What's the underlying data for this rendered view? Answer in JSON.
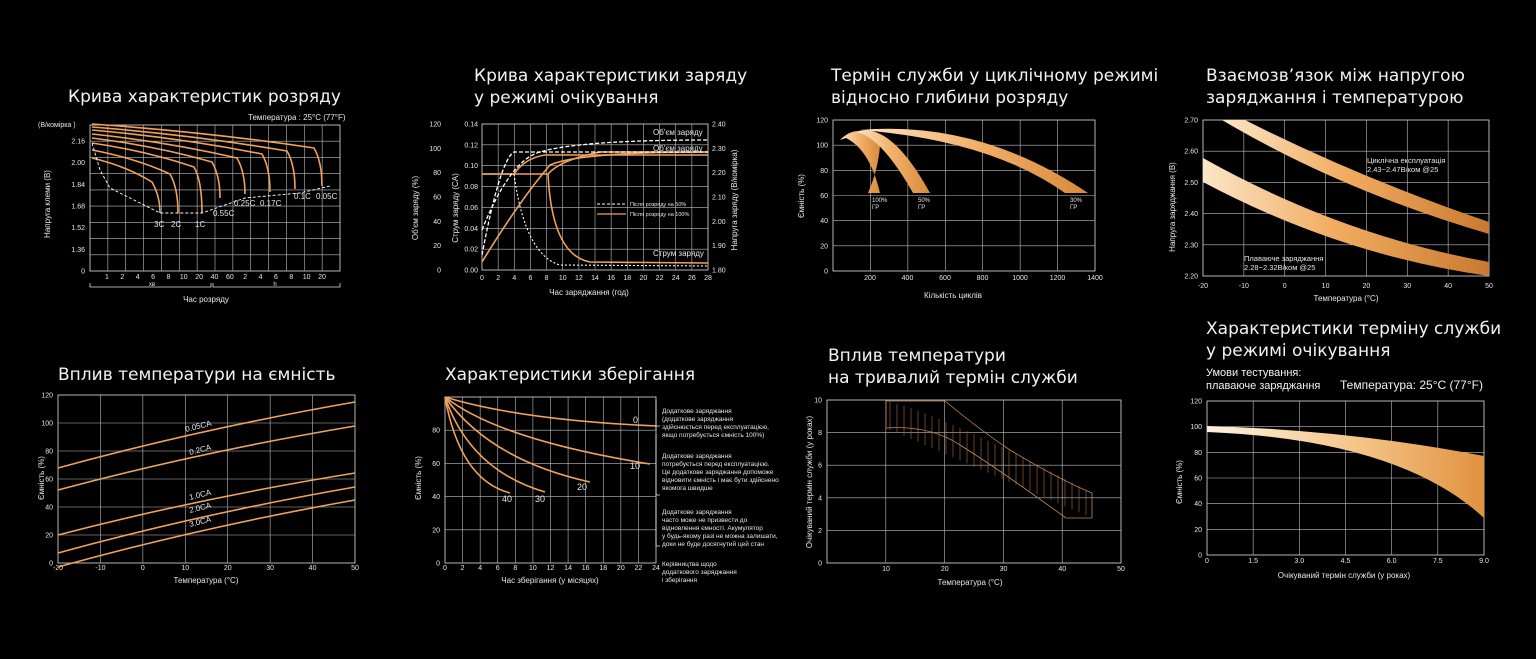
{
  "colors": {
    "background": "#000000",
    "curve": "#f0a25a",
    "band_light": "#f8d9ae",
    "band_dark": "#d98a3a",
    "text": "#e6e6e6"
  },
  "charts": {
    "discharge": {
      "title": "Крива характеристик розряду",
      "ylabel": "Напруга клеми (В)",
      "yunit": "(В/комірка )",
      "temp_label": "Температура : 25°C (77°F)",
      "xlabel": "Час розряду",
      "min_label": "хв",
      "hour_label": "h",
      "yticks": [
        "2.16",
        "2.00",
        "1.84",
        "1.68",
        "1.52",
        "1.36",
        "0"
      ],
      "xticks": [
        "1",
        "2",
        "4",
        "6",
        "8",
        "10",
        "20",
        "40",
        "60",
        "2",
        "4",
        "6",
        "8",
        "10",
        "20"
      ],
      "curve_labels": [
        "3C",
        "2C",
        "1C",
        "0.55C",
        "0.25C",
        "0.17C",
        "0.1C",
        "0.05C"
      ]
    },
    "standby_charge": {
      "title": "Крива характеристики заряду\nу режимі очікування",
      "xlabel": "Час заряджання (год)",
      "ylabel_left1": "Об'єм заряду (%)",
      "ylabel_left2": "Струм заряду (CA)",
      "ylabel_right": "Напруга заряду (В/комірка)",
      "yticks_left1": [
        "120",
        "100",
        "80",
        "60",
        "40",
        "20",
        "0"
      ],
      "yticks_left2": [
        "0.14",
        "0.12",
        "0.10",
        "0.08",
        "0.06",
        "0.04",
        "0.02",
        "0.00"
      ],
      "yticks_right": [
        "2.40",
        "2.30",
        "2.20",
        "2.10",
        "2.00",
        "1.90",
        "1.80"
      ],
      "xticks": [
        "0",
        "2",
        "4",
        "6",
        "8",
        "10",
        "12",
        "14",
        "16",
        "18",
        "20",
        "22",
        "24",
        "26",
        "28"
      ],
      "annotations": [
        "Об'єм заряду",
        "Об'єм заряду",
        "Струм заряду"
      ],
      "legend": [
        "Після розряду на 50%",
        "Після розряду на 100%"
      ]
    },
    "cycle_life": {
      "title": "Термін служби у циклічному режимі\nвідносно глибини розряду",
      "ylabel": "Ємність (%)",
      "xlabel": "Кількість циклів",
      "yticks": [
        "120",
        "100",
        "80",
        "60",
        "40",
        "20",
        "0"
      ],
      "xticks": [
        "200",
        "400",
        "600",
        "800",
        "1000",
        "1200",
        "1400"
      ],
      "labels": [
        "100%\nГР",
        "50%\nГР",
        "30%\nГР"
      ]
    },
    "voltage_temp": {
      "title": "Взаємозв’язок між напругою\nзаряджання і температурою",
      "ylabel": "Напруга заряджання (В)",
      "xlabel": "Температура (°C)",
      "yticks": [
        "2.70",
        "2.60",
        "2.50",
        "2.40",
        "2.30",
        "2.20"
      ],
      "xticks": [
        "-20",
        "-10",
        "0",
        "10",
        "20",
        "30",
        "40",
        "50"
      ],
      "cyclic_label": "Циклічна експлуатація\n2.43~2.47В/ком @25",
      "float_label": "Плаваюче заряджання\n2.28~2.32В/ком @25"
    },
    "temp_capacity": {
      "title": "Вплив температури на ємність",
      "ylabel": "Ємність (%)",
      "xlabel": "Температура (°C)",
      "yticks": [
        "120",
        "100",
        "80",
        "60",
        "40",
        "20",
        "0"
      ],
      "xticks": [
        "-20",
        "-10",
        "0",
        "10",
        "20",
        "30",
        "40",
        "50"
      ],
      "series": [
        "0.05CA",
        "0.2CA",
        "1.0CA",
        "2.0CA",
        "3.0CA"
      ]
    },
    "storage": {
      "title": "Характеристики зберігання",
      "ylabel": "Ємність (%)",
      "xlabel": "Час зберігання (у місяцях)",
      "yticks": [
        "80",
        "60",
        "40",
        "20",
        "0"
      ],
      "xticks": [
        "0",
        "2",
        "4",
        "6",
        "8",
        "10",
        "12",
        "14",
        "16",
        "18",
        "20",
        "22",
        "24"
      ],
      "curve_labels": [
        "0",
        "10",
        "20",
        "30",
        "40"
      ],
      "notes": [
        "Додаткове заряджання\n(додаткове заряджання\nздійснюється перед експлуатацією,\nякщо потребується ємність 100%)",
        "Додаткове заряджання\nпотребується перед експлуатацією.\nЦе додаткове заряджання допоможе\nвідновити ємність і має бути здійснено\nякомога швидше",
        "Додаткове заряджання\nчасто може не призвести до\nвідновлення ємності. Акумулятор\nу будь-якому разі не можна залишати,\nдоки не буде досягнутий цей стан",
        "Керівництва щодо\nдодаткового заряджання\nі зберігання"
      ]
    },
    "temp_service": {
      "title": "Вплив температури\nна тривалий термін служби",
      "ylabel": "Очікуваний термін служби (у роках)",
      "xlabel": "Температура (°C)",
      "yticks": [
        "10",
        "8",
        "6",
        "4",
        "2",
        "0"
      ],
      "xticks": [
        "10",
        "20",
        "30",
        "40",
        "50"
      ]
    },
    "standby_life": {
      "title": "Характеристики терміну служби\nу режимі очікування",
      "conditions": "Умови тестування:\nплаваюче заряджання",
      "temp_label": "Температура: 25°C (77°F)",
      "ylabel": "Ємність (%)",
      "xlabel": "Очікуваний термін служби (у роках)",
      "yticks": [
        "120",
        "100",
        "80",
        "60",
        "40",
        "20",
        "0"
      ],
      "xticks": [
        "0",
        "1.5",
        "3.0",
        "4.5",
        "6.0",
        "7.5",
        "9.0"
      ]
    }
  }
}
